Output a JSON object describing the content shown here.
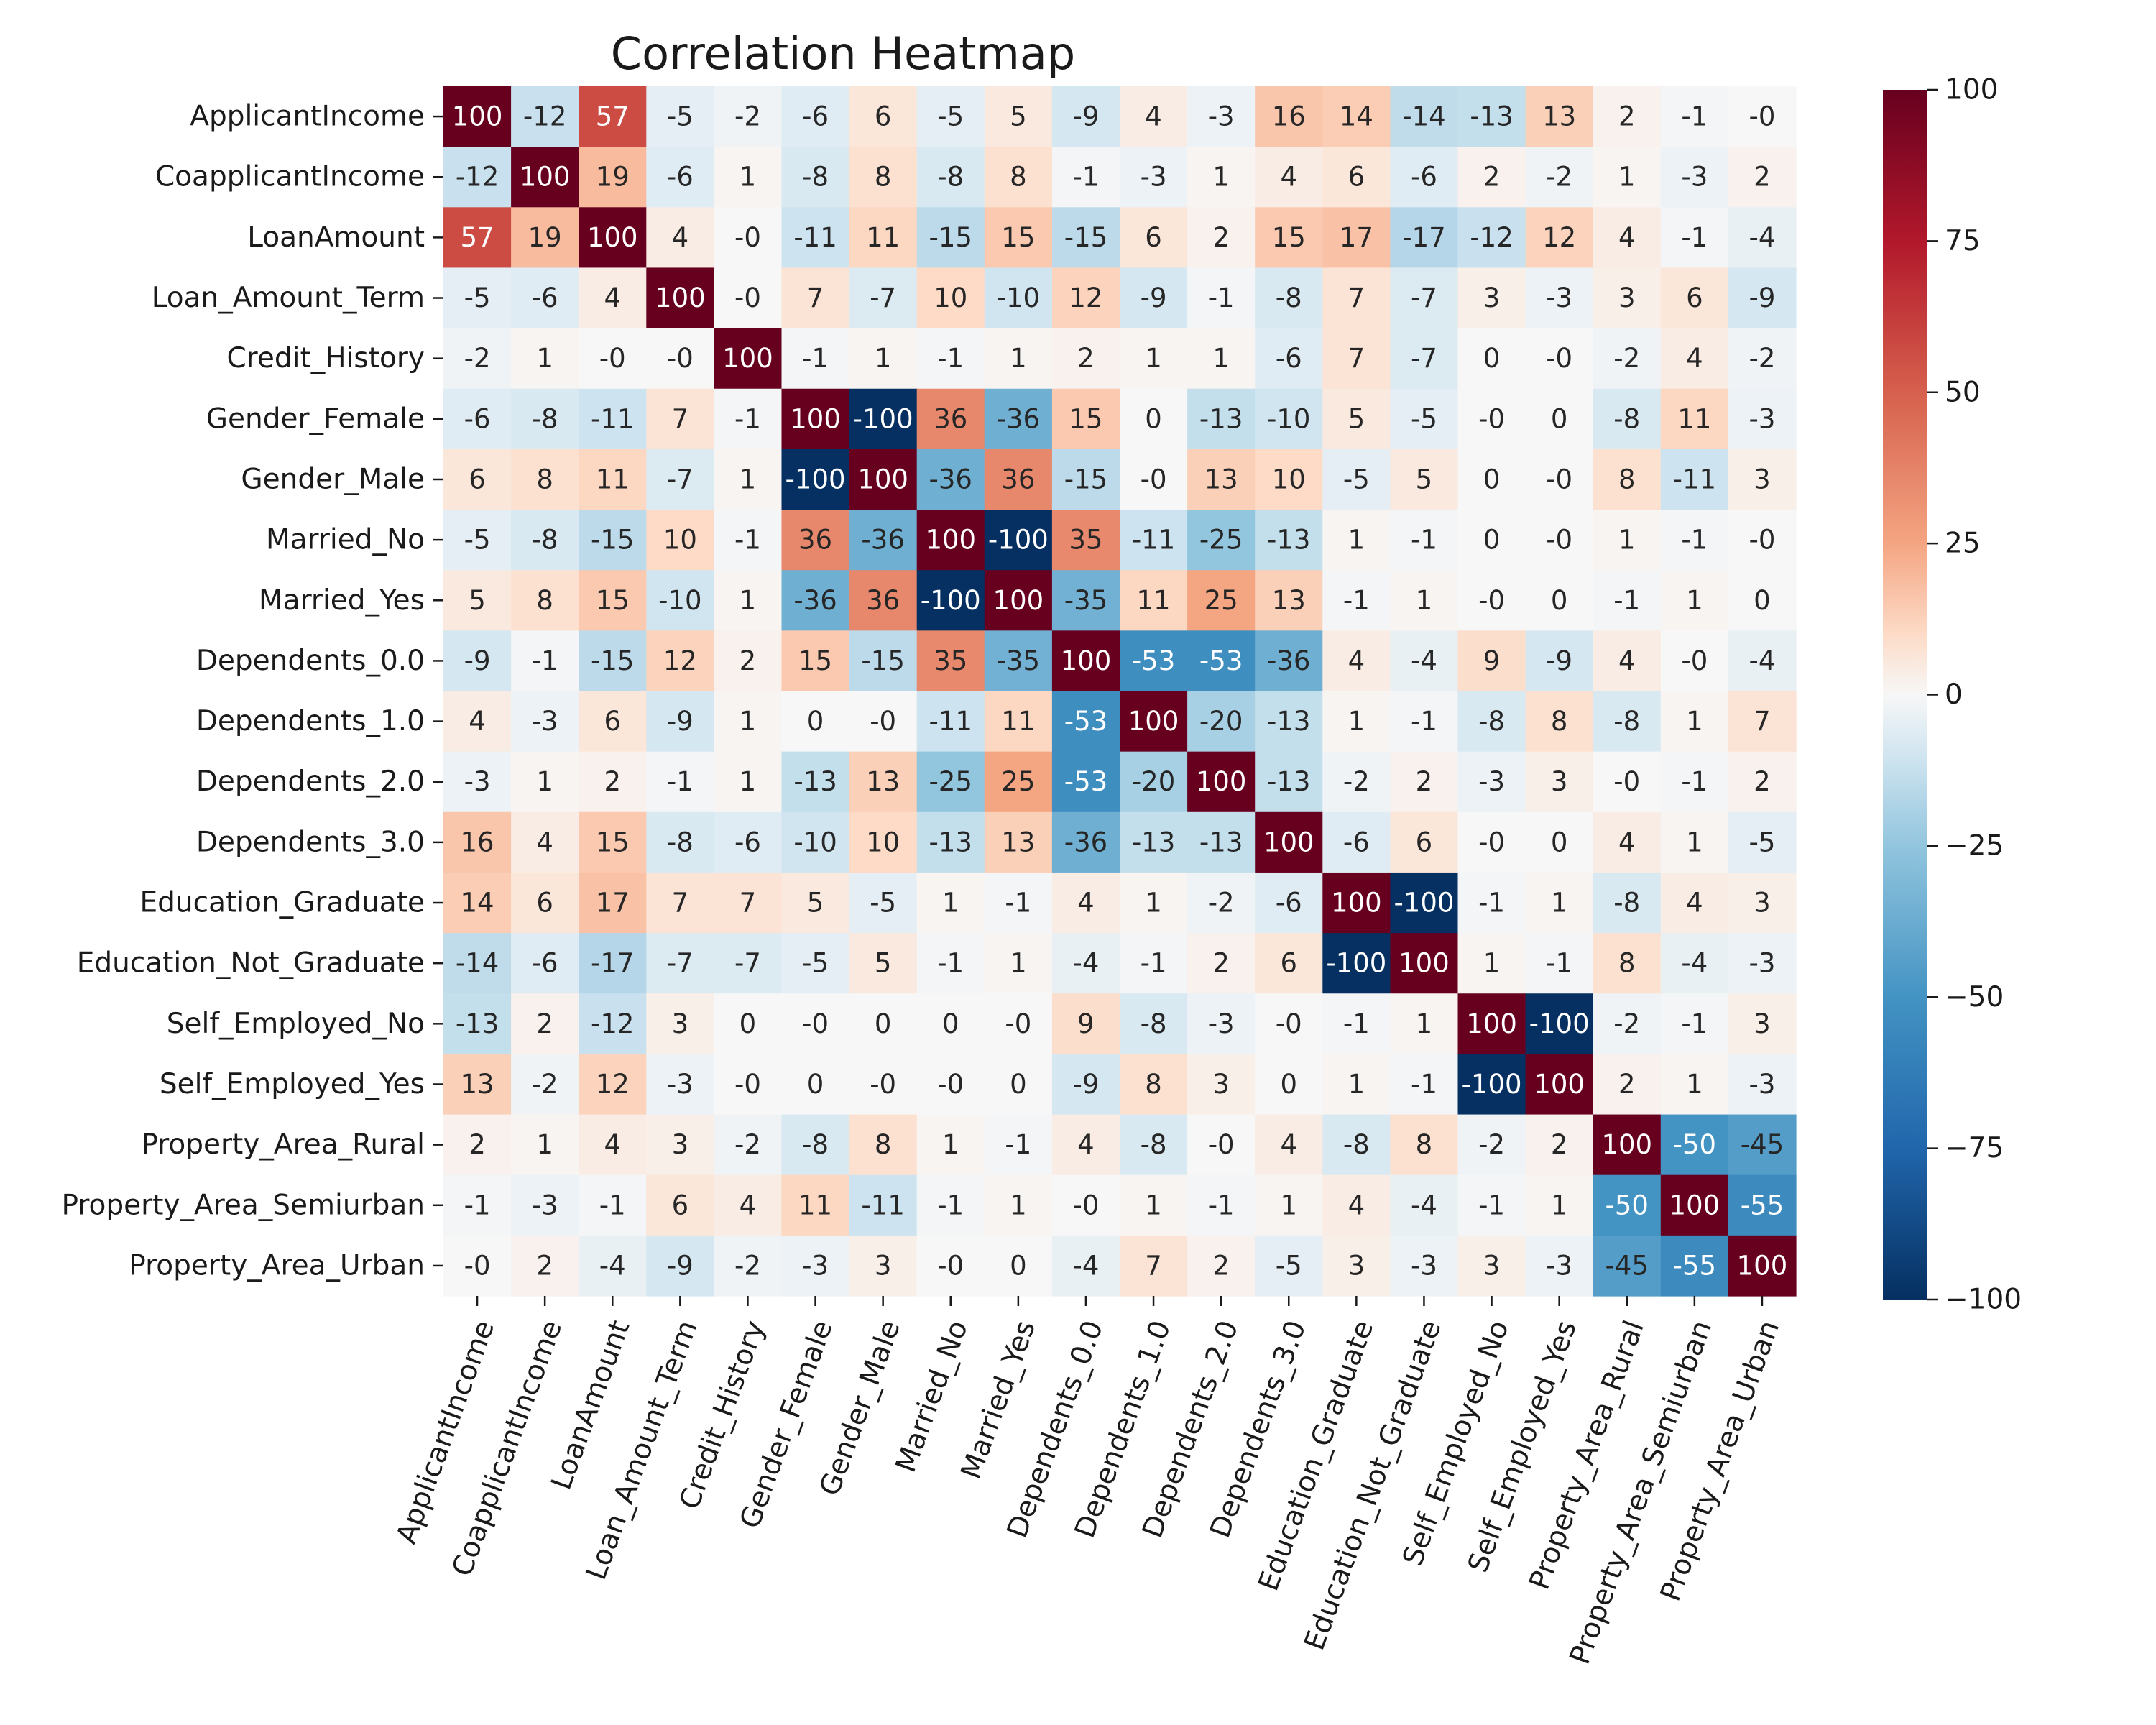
{
  "chart_data": {
    "type": "heatmap",
    "title": "Correlation Heatmap",
    "xlabel": "",
    "ylabel": "",
    "colormap": "RdBu_r",
    "vmin": -100,
    "vmax": 100,
    "colorbar_ticks": [
      100,
      75,
      50,
      25,
      0,
      -25,
      -50,
      -75,
      -100
    ],
    "colorbar_tick_labels": [
      "100",
      "75",
      "50",
      "25",
      "0",
      "−25",
      "−50",
      "−75",
      "−100"
    ],
    "labels": [
      "ApplicantIncome",
      "CoapplicantIncome",
      "LoanAmount",
      "Loan_Amount_Term",
      "Credit_History",
      "Gender_Female",
      "Gender_Male",
      "Married_No",
      "Married_Yes",
      "Dependents_0.0",
      "Dependents_1.0",
      "Dependents_2.0",
      "Dependents_3.0",
      "Education_Graduate",
      "Education_Not_Graduate",
      "Self_Employed_No",
      "Self_Employed_Yes",
      "Property_Area_Rural",
      "Property_Area_Semiurban",
      "Property_Area_Urban"
    ],
    "values": [
      [
        100,
        -12,
        57,
        -5,
        -2,
        -6,
        6,
        -5,
        5,
        -9,
        4,
        -3,
        16,
        14,
        -14,
        -13,
        13,
        2,
        -1,
        0
      ],
      [
        -12,
        100,
        19,
        -6,
        1,
        -8,
        8,
        -8,
        8,
        -1,
        -3,
        1,
        4,
        6,
        -6,
        2,
        -2,
        1,
        -3,
        2
      ],
      [
        57,
        19,
        100,
        4,
        0,
        -11,
        11,
        -15,
        15,
        -15,
        6,
        2,
        15,
        17,
        -17,
        -12,
        12,
        4,
        -1,
        -4
      ],
      [
        -5,
        -6,
        4,
        100,
        0,
        7,
        -7,
        10,
        -10,
        12,
        -9,
        -1,
        -8,
        7,
        -7,
        3,
        -3,
        3,
        6,
        -9
      ],
      [
        -2,
        1,
        0,
        0,
        100,
        -1,
        1,
        -1,
        1,
        2,
        1,
        1,
        -6,
        7,
        -7,
        0,
        0,
        -2,
        4,
        -2
      ],
      [
        -6,
        -8,
        -11,
        7,
        -1,
        100,
        -100,
        36,
        -36,
        15,
        0,
        -13,
        -10,
        5,
        -5,
        0,
        0,
        -8,
        11,
        -3
      ],
      [
        6,
        8,
        11,
        -7,
        1,
        -100,
        100,
        -36,
        36,
        -15,
        0,
        13,
        10,
        -5,
        5,
        0,
        0,
        8,
        -11,
        3
      ],
      [
        -5,
        -8,
        -15,
        10,
        -1,
        36,
        -36,
        100,
        -100,
        35,
        -11,
        -25,
        -13,
        1,
        -1,
        0,
        0,
        1,
        -1,
        0
      ],
      [
        5,
        8,
        15,
        -10,
        1,
        -36,
        36,
        -100,
        100,
        -35,
        11,
        25,
        13,
        -1,
        1,
        0,
        0,
        -1,
        1,
        0
      ],
      [
        -9,
        -1,
        -15,
        12,
        2,
        15,
        -15,
        35,
        -35,
        100,
        -53,
        -53,
        -36,
        4,
        -4,
        9,
        -9,
        4,
        0,
        -4
      ],
      [
        4,
        -3,
        6,
        -9,
        1,
        0,
        0,
        -11,
        11,
        -53,
        100,
        -20,
        -13,
        1,
        -1,
        -8,
        8,
        -8,
        1,
        7
      ],
      [
        -3,
        1,
        2,
        -1,
        1,
        -13,
        13,
        -25,
        25,
        -53,
        -20,
        100,
        -13,
        -2,
        2,
        -3,
        3,
        0,
        -1,
        2
      ],
      [
        16,
        4,
        15,
        -8,
        -6,
        -10,
        10,
        -13,
        13,
        -36,
        -13,
        -13,
        100,
        -6,
        6,
        0,
        0,
        4,
        1,
        -5
      ],
      [
        14,
        6,
        17,
        7,
        7,
        5,
        -5,
        1,
        -1,
        4,
        1,
        -2,
        -6,
        100,
        -100,
        -1,
        1,
        -8,
        4,
        3
      ],
      [
        -14,
        -6,
        -17,
        -7,
        -7,
        -5,
        5,
        -1,
        1,
        -4,
        -1,
        2,
        6,
        -100,
        100,
        1,
        -1,
        8,
        -4,
        -3
      ],
      [
        -13,
        2,
        -12,
        3,
        0,
        0,
        0,
        0,
        0,
        9,
        -8,
        -3,
        0,
        -1,
        1,
        100,
        -100,
        -2,
        -1,
        3
      ],
      [
        13,
        -2,
        12,
        -3,
        0,
        0,
        0,
        0,
        0,
        -9,
        8,
        3,
        0,
        1,
        -1,
        -100,
        100,
        2,
        1,
        -3
      ],
      [
        2,
        1,
        4,
        3,
        -2,
        -8,
        8,
        1,
        -1,
        4,
        -8,
        0,
        4,
        -8,
        8,
        -2,
        2,
        100,
        -50,
        -45
      ],
      [
        -1,
        -3,
        -1,
        6,
        4,
        11,
        -11,
        -1,
        1,
        0,
        1,
        -1,
        1,
        4,
        -4,
        -1,
        1,
        -50,
        100,
        -55
      ],
      [
        0,
        2,
        -4,
        -9,
        -2,
        -3,
        3,
        0,
        0,
        -4,
        7,
        2,
        -5,
        3,
        -3,
        3,
        -3,
        -45,
        -55,
        100
      ]
    ]
  }
}
